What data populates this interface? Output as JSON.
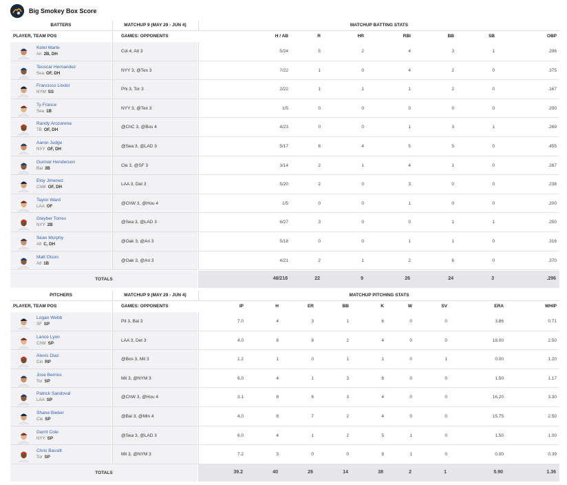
{
  "app": {
    "title": "Big Smokey Box Score"
  },
  "batting": {
    "group_label": "BATTERS",
    "matchup_label": "MATCHUP 9 (MAY 29 - JUN 4)",
    "stats_label": "MATCHUP BATTING STATS",
    "player_col": "PLAYER, TEAM POS",
    "games_col": "GAMES: OPPONENTS",
    "columns": [
      "H / AB",
      "R",
      "HR",
      "RBI",
      "BB",
      "SB",
      "OBP"
    ],
    "rows": [
      {
        "name": "Ketel Marte",
        "team": "Ari",
        "pos": "2B, DH",
        "games": "Col 4, Atl 3",
        "stats": [
          "5/24",
          "5",
          "2",
          "4",
          "3",
          "1",
          ".296"
        ]
      },
      {
        "name": "Teoscar Hernandez",
        "team": "Sea",
        "pos": "OF, DH",
        "games": "NYY 3, @Tex 3",
        "stats": [
          "7/22",
          "1",
          "0",
          "4",
          "2",
          "0",
          ".375"
        ]
      },
      {
        "name": "Francisco Lindor",
        "team": "NYM",
        "pos": "SS",
        "games": "Phi 3, Tor 3",
        "stats": [
          "2/22",
          "1",
          "1",
          "1",
          "2",
          "0",
          ".167"
        ]
      },
      {
        "name": "Ty France",
        "team": "Sea",
        "pos": "1B",
        "games": "NYY 3, @Tex 3",
        "stats": [
          "1/5",
          "0",
          "0",
          "0",
          "0",
          "0",
          ".200"
        ]
      },
      {
        "name": "Randy Arozarena",
        "team": "TB",
        "pos": "OF, DH",
        "games": "@ChC 3, @Bos 4",
        "stats": [
          "4/23",
          "0",
          "0",
          "1",
          "3",
          "1",
          ".269"
        ]
      },
      {
        "name": "Aaron Judge",
        "team": "NYY",
        "pos": "OF, DH",
        "games": "@Sea 3, @LAD 3",
        "stats": [
          "5/17",
          "6",
          "4",
          "5",
          "5",
          "0",
          ".455"
        ]
      },
      {
        "name": "Gunnar Henderson",
        "team": "Bal",
        "pos": "3B",
        "games": "Cle 3, @SF 3",
        "stats": [
          "3/14",
          "2",
          "1",
          "4",
          "1",
          "0",
          ".267"
        ]
      },
      {
        "name": "Eloy Jimenez",
        "team": "ChW",
        "pos": "OF, DH",
        "games": "LAA 3, Det 3",
        "stats": [
          "5/20",
          "2",
          "0",
          "3",
          "0",
          "0",
          ".238"
        ]
      },
      {
        "name": "Taylor Ward",
        "team": "LAA",
        "pos": "OF",
        "games": "@ChW 3, @Hou 4",
        "stats": [
          "1/5",
          "0",
          "0",
          "1",
          "0",
          "0",
          ".200"
        ]
      },
      {
        "name": "Gleyber Torres",
        "team": "NYY",
        "pos": "2B",
        "games": "@Sea 3, @LAD 3",
        "stats": [
          "6/27",
          "3",
          "0",
          "0",
          "1",
          "1",
          ".250"
        ]
      },
      {
        "name": "Sean Murphy",
        "team": "Atl",
        "pos": "C, DH",
        "games": "@Oak 3, @Ari 3",
        "stats": [
          "5/18",
          "0",
          "0",
          "1",
          "1",
          "0",
          ".316"
        ]
      },
      {
        "name": "Matt Olson",
        "team": "Atl",
        "pos": "1B",
        "games": "@Oak 3, @Ari 3",
        "stats": [
          "4/21",
          "2",
          "1",
          "2",
          "6",
          "0",
          ".370"
        ]
      }
    ],
    "totals_label": "TOTALS",
    "totals": [
      "48/218",
      "22",
      "9",
      "26",
      "24",
      "3",
      ".296"
    ]
  },
  "pitching": {
    "group_label": "PITCHERS",
    "matchup_label": "MATCHUP 9 (MAY 29 - JUN 4)",
    "stats_label": "MATCHUP PITCHING STATS",
    "player_col": "PLAYER, TEAM POS",
    "games_col": "GAMES: OPPONENTS",
    "columns": [
      "IP",
      "H",
      "ER",
      "BB",
      "K",
      "W",
      "SV",
      "ERA",
      "WHIP"
    ],
    "rows": [
      {
        "name": "Logan Webb",
        "team": "SF",
        "pos": "SP",
        "games": "Pit 3, Bal 3",
        "stats": [
          "7.0",
          "4",
          "3",
          "1",
          "6",
          "0",
          "0",
          "3.86",
          "0.71"
        ]
      },
      {
        "name": "Lance Lynn",
        "team": "ChW",
        "pos": "SP",
        "games": "LAA 3, Det 3",
        "stats": [
          "4.0",
          "8",
          "8",
          "2",
          "4",
          "0",
          "0",
          "18.00",
          "2.50"
        ]
      },
      {
        "name": "Alexis Diaz",
        "team": "Cin",
        "pos": "RP",
        "games": "@Bos 3, Mil 3",
        "stats": [
          "1.2",
          "1",
          "0",
          "1",
          "1",
          "0",
          "1",
          "0.00",
          "1.20"
        ]
      },
      {
        "name": "Jose Berrios",
        "team": "Tor",
        "pos": "SP",
        "games": "Mil 3, @NYM 3",
        "stats": [
          "6.0",
          "4",
          "1",
          "3",
          "6",
          "0",
          "0",
          "1.50",
          "1.17"
        ]
      },
      {
        "name": "Patrick Sandoval",
        "team": "LAA",
        "pos": "SP",
        "games": "@ChW 3, @Hou 4",
        "stats": [
          "3.1",
          "8",
          "6",
          "3",
          "4",
          "0",
          "0",
          "16.20",
          "3.30"
        ]
      },
      {
        "name": "Shane Bieber",
        "team": "Cle",
        "pos": "SP",
        "games": "@Bal 3, @Min 4",
        "stats": [
          "4.0",
          "8",
          "7",
          "2",
          "4",
          "0",
          "0",
          "15.75",
          "2.50"
        ]
      },
      {
        "name": "Gerrit Cole",
        "team": "NYY",
        "pos": "SP",
        "games": "@Sea 3, @LAD 3",
        "stats": [
          "6.0",
          "4",
          "1",
          "2",
          "5",
          "1",
          "0",
          "1.50",
          "1.00"
        ]
      },
      {
        "name": "Chris Bassitt",
        "team": "Tor",
        "pos": "SP",
        "games": "Mil 3, @NYM 3",
        "stats": [
          "7.2",
          "3",
          "0",
          "0",
          "8",
          "1",
          "0",
          "0.00",
          "0.39"
        ]
      }
    ],
    "totals_label": "TOTALS",
    "totals": [
      "39.2",
      "40",
      "26",
      "14",
      "38",
      "2",
      "1",
      "5.90",
      "1.36"
    ]
  }
}
